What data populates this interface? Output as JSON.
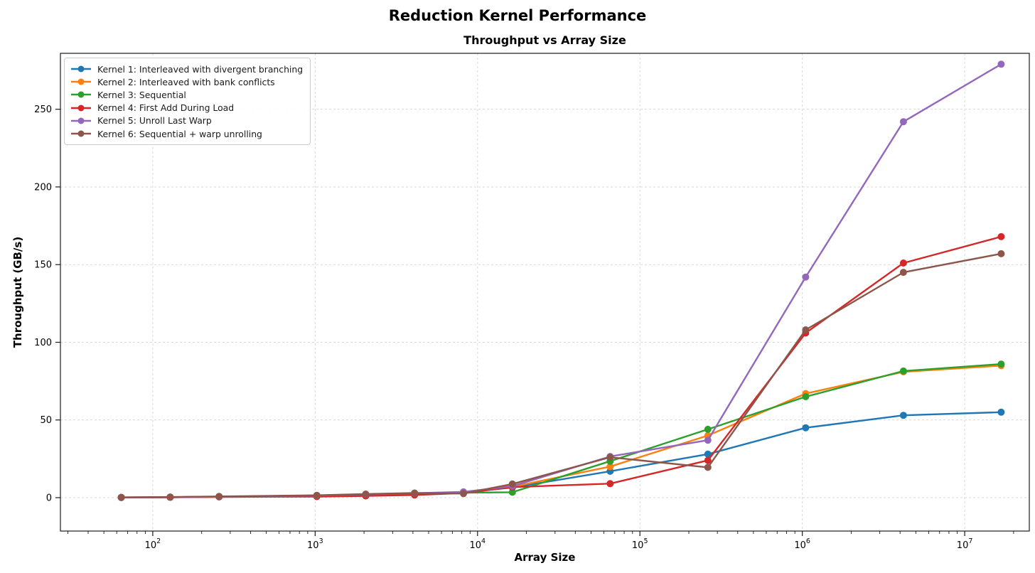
{
  "chart_data": {
    "type": "line",
    "suptitle": "Reduction Kernel Performance",
    "title": "Throughput vs Array Size",
    "xlabel": "Array Size",
    "ylabel": "Throughput (GB/s)",
    "x_scale": "log",
    "grid": true,
    "legend_position": "upper left",
    "x": [
      64,
      128,
      256,
      1024,
      2048,
      4096,
      8192,
      16384,
      65536,
      262144,
      1048576,
      4194304,
      16777216
    ],
    "x_tick_exponents": [
      2,
      3,
      4,
      5,
      6,
      7
    ],
    "x_tick_base": "10",
    "y_ticks": [
      0,
      50,
      100,
      150,
      200,
      250
    ],
    "xlim": [
      27,
      25000000
    ],
    "ylim": [
      -21.5,
      286
    ],
    "series": [
      {
        "name": "Kernel 1: Interleaved with divergent branching",
        "color": "#1f77b4",
        "values": [
          0.15,
          0.3,
          0.6,
          1.3,
          2.0,
          2.7,
          3.4,
          6.5,
          17,
          28,
          45,
          53,
          55
        ]
      },
      {
        "name": "Kernel 2: Interleaved with bank conflicts",
        "color": "#ff7f0e",
        "values": [
          0.15,
          0.3,
          0.6,
          1.4,
          2.1,
          2.8,
          3.6,
          7.0,
          20,
          40,
          67,
          81,
          85
        ]
      },
      {
        "name": "Kernel 3: Sequential",
        "color": "#2ca02c",
        "values": [
          0.15,
          0.3,
          0.6,
          1.4,
          2.1,
          2.8,
          3.2,
          3.5,
          23.5,
          44,
          65,
          81.5,
          86
        ]
      },
      {
        "name": "Kernel 4: First Add During Load",
        "color": "#d62728",
        "values": [
          0.1,
          0.2,
          0.45,
          0.7,
          1.1,
          1.7,
          3.0,
          6.8,
          9,
          24,
          106,
          151,
          168
        ]
      },
      {
        "name": "Kernel 5: Unroll Last Warp",
        "color": "#9467bd",
        "values": [
          0.15,
          0.3,
          0.6,
          1.4,
          2.1,
          2.9,
          3.7,
          7.4,
          26.5,
          37,
          142,
          242,
          279
        ]
      },
      {
        "name": "Kernel 6: Sequential + warp unrolling",
        "color": "#8c564b",
        "values": [
          0.2,
          0.4,
          0.8,
          1.5,
          2.3,
          3.0,
          2.6,
          8.8,
          26,
          19.5,
          108,
          145,
          157
        ]
      }
    ]
  }
}
